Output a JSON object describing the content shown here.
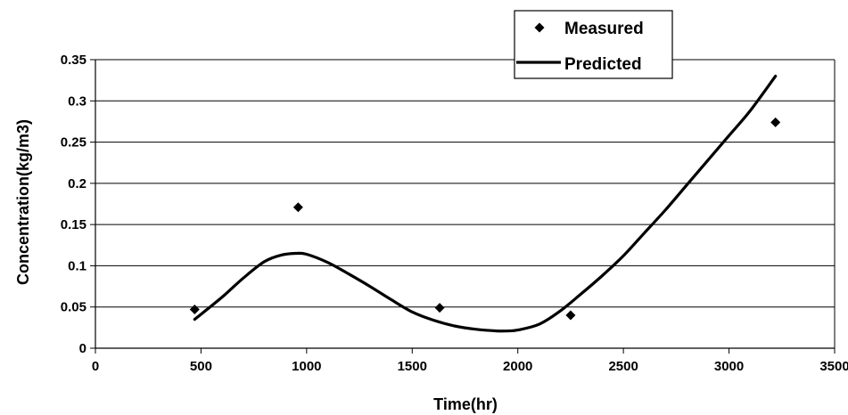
{
  "chart_data": {
    "type": "scatter",
    "title": "",
    "xlabel": "Time(hr)",
    "ylabel": "Concentration(kg/m3)",
    "xlim": [
      0,
      3500
    ],
    "ylim": [
      0,
      0.35
    ],
    "x_ticks": [
      0,
      500,
      1000,
      1500,
      2000,
      2500,
      3000,
      3500
    ],
    "y_ticks": [
      0,
      0.05,
      0.1,
      0.15,
      0.2,
      0.25,
      0.3,
      0.35
    ],
    "grid": "horizontal",
    "legend_position": "top-right",
    "series": [
      {
        "name": "Measured",
        "kind": "markers",
        "marker": "diamond",
        "color": "#000000",
        "x": [
          470,
          960,
          1630,
          2250,
          3220
        ],
        "y": [
          0.047,
          0.171,
          0.049,
          0.04,
          0.274
        ]
      },
      {
        "name": "Predicted",
        "kind": "line",
        "color": "#000000",
        "x": [
          470,
          600,
          700,
          800,
          880,
          950,
          1000,
          1100,
          1200,
          1300,
          1400,
          1500,
          1600,
          1700,
          1800,
          1900,
          1950,
          2000,
          2100,
          2200,
          2300,
          2400,
          2500,
          2600,
          2700,
          2800,
          2900,
          3000,
          3100,
          3220
        ],
        "y": [
          0.035,
          0.062,
          0.085,
          0.105,
          0.113,
          0.115,
          0.114,
          0.104,
          0.09,
          0.075,
          0.059,
          0.044,
          0.034,
          0.027,
          0.023,
          0.021,
          0.021,
          0.022,
          0.029,
          0.045,
          0.066,
          0.088,
          0.112,
          0.14,
          0.168,
          0.198,
          0.228,
          0.258,
          0.288,
          0.33
        ]
      }
    ]
  }
}
